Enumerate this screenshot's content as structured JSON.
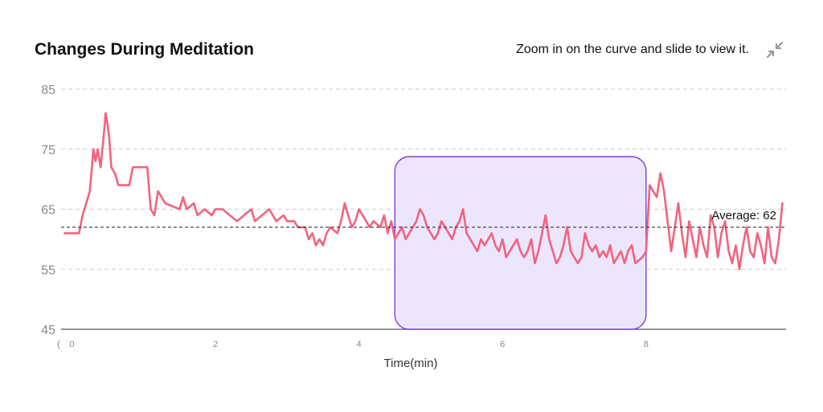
{
  "header": {
    "title": "Changes During Meditation",
    "hint": "Zoom in on the curve and slide to view it.",
    "zoom_icon": "collapse-arrows-icon"
  },
  "colors": {
    "line": "#f2637f",
    "average_line": "#333333",
    "selection_fill": "#ece6fd",
    "selection_stroke": "#7b3fe0",
    "grid": "#cccccc",
    "icon": "#999999"
  },
  "chart_data": {
    "type": "line",
    "title": "Changes During Meditation",
    "xlabel": "Time(min)",
    "ylabel": "",
    "xlim": [
      -0.15,
      9.95
    ],
    "ylim": [
      45,
      85
    ],
    "yticks": [
      45,
      55,
      65,
      75,
      85
    ],
    "xticks": [
      0,
      2,
      4,
      6,
      8
    ],
    "x_origin_partial_label": "(",
    "grid": "horizontal dashed",
    "average": {
      "value": 62,
      "label": "Average: 62"
    },
    "selection": {
      "x_start": 4.5,
      "x_end": 8.0
    },
    "series": [
      {
        "values": [
          [
            -0.1,
            61
          ],
          [
            0.1,
            61
          ],
          [
            0.15,
            64
          ],
          [
            0.2,
            66
          ],
          [
            0.25,
            68
          ],
          [
            0.28,
            72
          ],
          [
            0.3,
            75
          ],
          [
            0.33,
            73
          ],
          [
            0.36,
            75
          ],
          [
            0.4,
            72
          ],
          [
            0.45,
            78
          ],
          [
            0.47,
            81
          ],
          [
            0.5,
            79
          ],
          [
            0.52,
            77
          ],
          [
            0.55,
            72
          ],
          [
            0.6,
            71
          ],
          [
            0.65,
            69
          ],
          [
            0.8,
            69
          ],
          [
            0.85,
            72
          ],
          [
            1.05,
            72
          ],
          [
            1.1,
            65
          ],
          [
            1.15,
            64
          ],
          [
            1.2,
            68
          ],
          [
            1.3,
            66
          ],
          [
            1.5,
            65
          ],
          [
            1.55,
            67
          ],
          [
            1.6,
            65
          ],
          [
            1.7,
            66
          ],
          [
            1.75,
            64
          ],
          [
            1.85,
            65
          ],
          [
            1.95,
            64
          ],
          [
            2.0,
            65
          ],
          [
            2.1,
            65
          ],
          [
            2.2,
            64
          ],
          [
            2.3,
            63
          ],
          [
            2.4,
            64
          ],
          [
            2.5,
            65
          ],
          [
            2.55,
            63
          ],
          [
            2.65,
            64
          ],
          [
            2.75,
            65
          ],
          [
            2.85,
            63
          ],
          [
            2.95,
            64
          ],
          [
            3.0,
            63
          ],
          [
            3.1,
            63
          ],
          [
            3.15,
            62
          ],
          [
            3.25,
            62
          ],
          [
            3.3,
            60
          ],
          [
            3.35,
            61
          ],
          [
            3.4,
            59
          ],
          [
            3.45,
            60
          ],
          [
            3.5,
            59
          ],
          [
            3.55,
            61
          ],
          [
            3.6,
            62
          ],
          [
            3.7,
            61
          ],
          [
            3.75,
            63
          ],
          [
            3.8,
            66
          ],
          [
            3.85,
            64
          ],
          [
            3.9,
            62
          ],
          [
            3.95,
            63
          ],
          [
            4.0,
            65
          ],
          [
            4.05,
            64
          ],
          [
            4.1,
            63
          ],
          [
            4.15,
            62
          ],
          [
            4.2,
            63
          ],
          [
            4.3,
            62
          ],
          [
            4.35,
            64
          ],
          [
            4.4,
            61
          ],
          [
            4.45,
            63
          ],
          [
            4.5,
            60
          ],
          [
            4.55,
            61
          ],
          [
            4.6,
            62
          ],
          [
            4.65,
            60
          ],
          [
            4.7,
            61
          ],
          [
            4.8,
            63
          ],
          [
            4.85,
            65
          ],
          [
            4.9,
            64
          ],
          [
            4.95,
            62
          ],
          [
            5.0,
            61
          ],
          [
            5.05,
            60
          ],
          [
            5.1,
            61
          ],
          [
            5.15,
            63
          ],
          [
            5.2,
            62
          ],
          [
            5.25,
            61
          ],
          [
            5.3,
            60
          ],
          [
            5.35,
            62
          ],
          [
            5.4,
            63
          ],
          [
            5.45,
            65
          ],
          [
            5.5,
            61
          ],
          [
            5.55,
            60
          ],
          [
            5.6,
            59
          ],
          [
            5.65,
            58
          ],
          [
            5.7,
            60
          ],
          [
            5.75,
            59
          ],
          [
            5.8,
            60
          ],
          [
            5.85,
            61
          ],
          [
            5.9,
            59
          ],
          [
            5.95,
            58
          ],
          [
            6.0,
            60
          ],
          [
            6.05,
            57
          ],
          [
            6.1,
            58
          ],
          [
            6.15,
            59
          ],
          [
            6.2,
            60
          ],
          [
            6.25,
            58
          ],
          [
            6.3,
            57
          ],
          [
            6.35,
            58
          ],
          [
            6.4,
            60
          ],
          [
            6.45,
            56
          ],
          [
            6.5,
            58
          ],
          [
            6.55,
            61
          ],
          [
            6.6,
            64
          ],
          [
            6.65,
            60
          ],
          [
            6.7,
            58
          ],
          [
            6.75,
            56
          ],
          [
            6.8,
            57
          ],
          [
            6.85,
            59
          ],
          [
            6.9,
            62
          ],
          [
            6.95,
            58
          ],
          [
            7.0,
            57
          ],
          [
            7.05,
            56
          ],
          [
            7.1,
            57
          ],
          [
            7.15,
            61
          ],
          [
            7.2,
            59
          ],
          [
            7.25,
            58
          ],
          [
            7.3,
            59
          ],
          [
            7.35,
            57
          ],
          [
            7.4,
            58
          ],
          [
            7.45,
            57
          ],
          [
            7.5,
            59
          ],
          [
            7.55,
            56
          ],
          [
            7.6,
            57
          ],
          [
            7.65,
            58
          ],
          [
            7.7,
            56
          ],
          [
            7.75,
            58
          ],
          [
            7.8,
            59
          ],
          [
            7.85,
            56
          ],
          [
            7.95,
            57
          ],
          [
            8.0,
            58
          ],
          [
            8.05,
            69
          ],
          [
            8.1,
            68
          ],
          [
            8.15,
            67
          ],
          [
            8.2,
            71
          ],
          [
            8.25,
            68
          ],
          [
            8.3,
            63
          ],
          [
            8.35,
            58
          ],
          [
            8.4,
            62
          ],
          [
            8.45,
            66
          ],
          [
            8.5,
            61
          ],
          [
            8.55,
            57
          ],
          [
            8.6,
            63
          ],
          [
            8.65,
            60
          ],
          [
            8.7,
            57
          ],
          [
            8.75,
            62
          ],
          [
            8.8,
            59
          ],
          [
            8.85,
            57
          ],
          [
            8.9,
            64
          ],
          [
            8.95,
            62
          ],
          [
            9.0,
            57
          ],
          [
            9.05,
            61
          ],
          [
            9.1,
            63
          ],
          [
            9.15,
            58
          ],
          [
            9.2,
            56
          ],
          [
            9.25,
            59
          ],
          [
            9.3,
            55
          ],
          [
            9.35,
            59
          ],
          [
            9.4,
            62
          ],
          [
            9.45,
            58
          ],
          [
            9.5,
            57
          ],
          [
            9.55,
            61
          ],
          [
            9.6,
            59
          ],
          [
            9.65,
            56
          ],
          [
            9.7,
            62
          ],
          [
            9.75,
            57
          ],
          [
            9.8,
            56
          ],
          [
            9.85,
            60
          ],
          [
            9.9,
            66
          ]
        ]
      }
    ]
  }
}
